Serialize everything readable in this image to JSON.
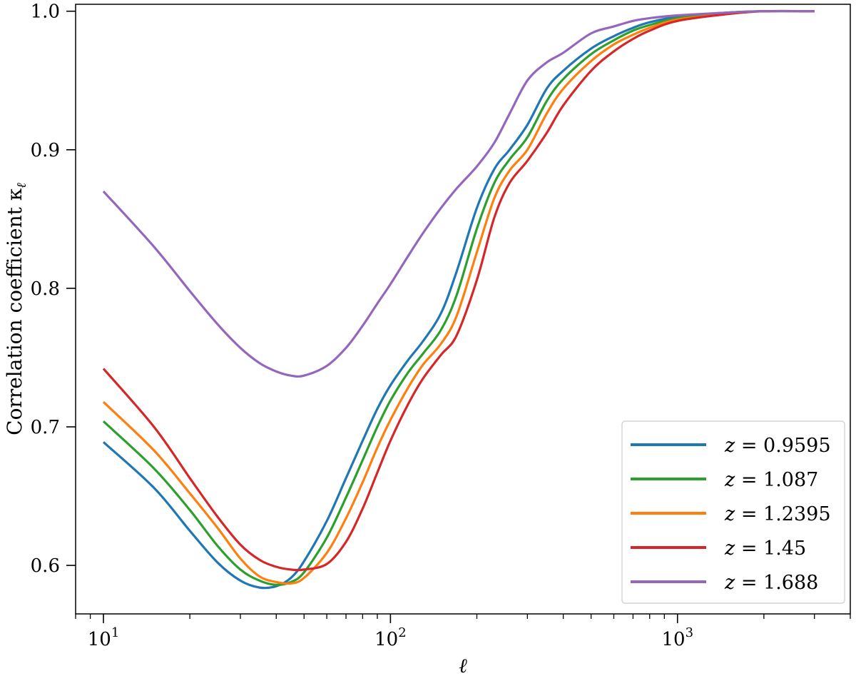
{
  "chart_data": {
    "type": "line",
    "title": "",
    "xlabel": "ℓ",
    "ylabel": "Correlation coefficient κ",
    "ylabel_subscript": "ℓ",
    "xscale": "log",
    "xlim": [
      8,
      4000
    ],
    "ylim": [
      0.565,
      1.005
    ],
    "grid": false,
    "legend_placement": "lower-right",
    "x_ticks": [
      {
        "value": 10,
        "base": "10",
        "exp": "1"
      },
      {
        "value": 100,
        "base": "10",
        "exp": "2"
      },
      {
        "value": 1000,
        "base": "10",
        "exp": "3"
      }
    ],
    "y_ticks": [
      {
        "value": 0.6,
        "label": "0.6"
      },
      {
        "value": 0.7,
        "label": "0.7"
      },
      {
        "value": 0.8,
        "label": "0.8"
      },
      {
        "value": 0.9,
        "label": "0.9"
      },
      {
        "value": 1.0,
        "label": "1.0"
      }
    ],
    "series": [
      {
        "name": "z = 0.9595",
        "z_value": "0.9595",
        "color": "#1f77b4",
        "x": [
          10,
          15,
          20,
          25,
          30,
          35,
          40,
          45,
          50,
          60,
          70,
          80,
          90,
          100,
          115,
          130,
          150,
          170,
          200,
          230,
          260,
          300,
          350,
          400,
          500,
          600,
          700,
          800,
          1000,
          1500,
          2000,
          3000
        ],
        "y": [
          0.689,
          0.656,
          0.625,
          0.602,
          0.589,
          0.584,
          0.585,
          0.591,
          0.603,
          0.632,
          0.663,
          0.69,
          0.713,
          0.73,
          0.748,
          0.762,
          0.782,
          0.812,
          0.858,
          0.886,
          0.9,
          0.918,
          0.944,
          0.957,
          0.973,
          0.982,
          0.988,
          0.992,
          0.996,
          0.999,
          1.0,
          1.0
        ]
      },
      {
        "name": "z = 1.087",
        "z_value": "1.087",
        "color": "#2ca02c",
        "x": [
          10,
          15,
          20,
          25,
          30,
          35,
          40,
          45,
          50,
          60,
          70,
          80,
          90,
          100,
          115,
          130,
          150,
          170,
          200,
          230,
          260,
          300,
          350,
          400,
          500,
          600,
          700,
          800,
          1000,
          1500,
          2000,
          3000
        ],
        "y": [
          0.704,
          0.67,
          0.64,
          0.614,
          0.597,
          0.589,
          0.586,
          0.588,
          0.595,
          0.62,
          0.649,
          0.676,
          0.7,
          0.719,
          0.739,
          0.753,
          0.77,
          0.795,
          0.843,
          0.876,
          0.893,
          0.909,
          0.935,
          0.951,
          0.969,
          0.979,
          0.986,
          0.99,
          0.995,
          0.999,
          1.0,
          1.0
        ]
      },
      {
        "name": "z = 1.2395",
        "z_value": "1.2395",
        "color": "#ff7f0e",
        "x": [
          10,
          15,
          20,
          25,
          30,
          35,
          40,
          45,
          50,
          60,
          70,
          80,
          90,
          100,
          115,
          130,
          150,
          170,
          200,
          230,
          260,
          300,
          350,
          400,
          500,
          600,
          700,
          800,
          1000,
          1500,
          2000,
          3000
        ],
        "y": [
          0.718,
          0.683,
          0.652,
          0.627,
          0.605,
          0.592,
          0.588,
          0.587,
          0.591,
          0.609,
          0.634,
          0.66,
          0.685,
          0.705,
          0.728,
          0.745,
          0.76,
          0.78,
          0.826,
          0.865,
          0.885,
          0.9,
          0.926,
          0.944,
          0.964,
          0.976,
          0.983,
          0.988,
          0.994,
          0.998,
          1.0,
          1.0
        ]
      },
      {
        "name": "z = 1.45",
        "z_value": "1.45",
        "color": "#d62728",
        "x": [
          10,
          15,
          20,
          25,
          30,
          35,
          40,
          45,
          50,
          60,
          70,
          80,
          90,
          100,
          115,
          130,
          150,
          170,
          200,
          230,
          260,
          300,
          350,
          400,
          500,
          600,
          700,
          800,
          1000,
          1500,
          2000,
          3000
        ],
        "y": [
          0.742,
          0.7,
          0.663,
          0.635,
          0.615,
          0.604,
          0.599,
          0.597,
          0.597,
          0.601,
          0.617,
          0.641,
          0.667,
          0.69,
          0.716,
          0.735,
          0.752,
          0.766,
          0.806,
          0.851,
          0.876,
          0.892,
          0.912,
          0.932,
          0.957,
          0.971,
          0.98,
          0.986,
          0.993,
          0.998,
          1.0,
          1.0
        ]
      },
      {
        "name": "z = 1.688",
        "z_value": "1.688",
        "color": "#9467bd",
        "x": [
          10,
          15,
          20,
          25,
          30,
          35,
          40,
          45,
          50,
          60,
          70,
          80,
          90,
          100,
          115,
          130,
          150,
          170,
          200,
          230,
          260,
          300,
          350,
          400,
          500,
          600,
          700,
          800,
          1000,
          1500,
          2000,
          3000
        ],
        "y": [
          0.87,
          0.83,
          0.798,
          0.774,
          0.757,
          0.746,
          0.74,
          0.737,
          0.737,
          0.744,
          0.757,
          0.773,
          0.789,
          0.803,
          0.823,
          0.84,
          0.858,
          0.872,
          0.888,
          0.905,
          0.926,
          0.95,
          0.963,
          0.97,
          0.984,
          0.989,
          0.993,
          0.995,
          0.997,
          0.999,
          1.0,
          1.0
        ]
      }
    ]
  }
}
